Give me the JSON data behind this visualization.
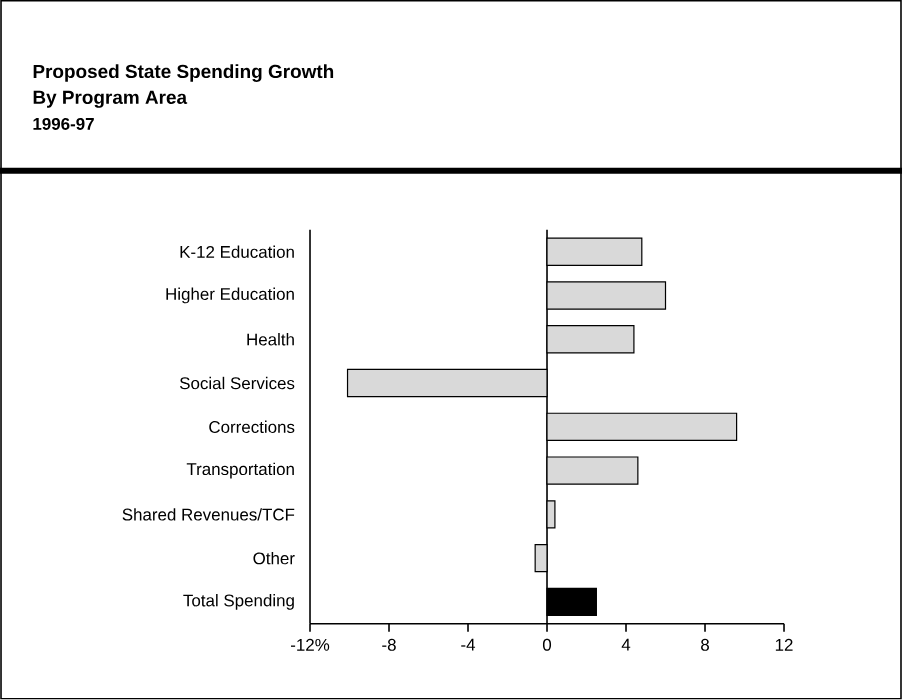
{
  "chart_data": {
    "type": "bar",
    "orientation": "horizontal",
    "title": "Proposed State Spending Growth\nBy Program Area",
    "subtitle": "1996-97",
    "categories": [
      "K-12 Education",
      "Higher Education",
      "Health",
      "Social Services",
      "Corrections",
      "Transportation",
      "Shared Revenues/TCF",
      "Other",
      "Total Spending"
    ],
    "values": [
      4.8,
      6.0,
      4.4,
      -10.1,
      9.6,
      4.6,
      0.4,
      -0.6,
      2.5
    ],
    "colors": [
      "#d9d9d9",
      "#d9d9d9",
      "#d9d9d9",
      "#d9d9d9",
      "#d9d9d9",
      "#d9d9d9",
      "#d9d9d9",
      "#d9d9d9",
      "#000000"
    ],
    "xlim": [
      -12,
      12
    ],
    "xticks": [
      {
        "value": -12,
        "label": "-12%"
      },
      -8,
      -4,
      0,
      4,
      8,
      12
    ]
  }
}
